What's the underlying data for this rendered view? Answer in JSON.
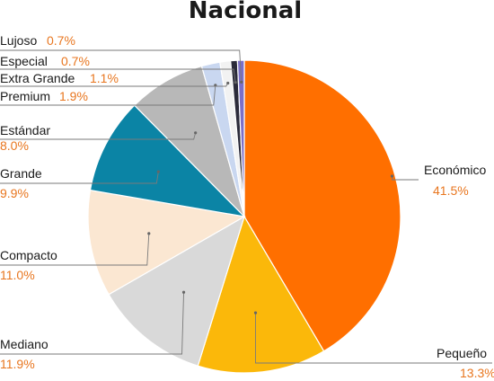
{
  "chart_data": {
    "type": "pie",
    "title": "Nacional",
    "slices": [
      {
        "label": "Económico",
        "value": 41.5,
        "display": "41.5%",
        "color": "#ff6f00"
      },
      {
        "label": "Pequeño",
        "value": 13.3,
        "display": "13.3%",
        "color": "#fbb80a"
      },
      {
        "label": "Mediano",
        "value": 11.9,
        "display": "11.9%",
        "color": "#d9d9d9"
      },
      {
        "label": "Compacto",
        "value": 11.0,
        "display": "11.0%",
        "color": "#fbe7d2"
      },
      {
        "label": "Grande",
        "value": 9.9,
        "display": "9.9%",
        "color": "#0b84a5"
      },
      {
        "label": "Estándar",
        "value": 8.0,
        "display": "8.0%",
        "color": "#b8b8b8"
      },
      {
        "label": "Premium",
        "value": 1.9,
        "display": "1.9%",
        "color": "#c9d7f0"
      },
      {
        "label": "Extra Grande",
        "value": 1.1,
        "display": "1.1%",
        "color": "#f2f2f2"
      },
      {
        "label": "Especial",
        "value": 0.7,
        "display": "0.7%",
        "color": "#2b2b3a"
      },
      {
        "label": "Lujoso",
        "value": 0.7,
        "display": "0.7%",
        "color": "#7b6fc9"
      }
    ]
  }
}
